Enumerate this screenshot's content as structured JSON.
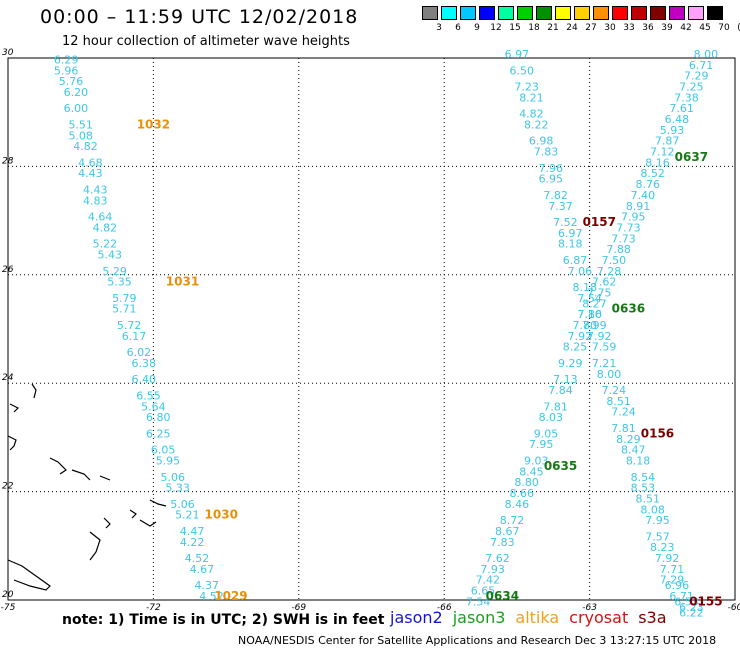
{
  "title": "00:00 – 11:59 UTC 12/02/2018",
  "subtitle": "12 hour collection of altimeter wave heights",
  "note": "note: 1) Time is in UTC; 2) SWH is in feet",
  "credit": "NOAA/NESDIS Center for Satellite Applications and Research    Dec  3 13:27:15 UTC 2018",
  "satellites": [
    {
      "name": "jason2",
      "color": "#1414d2"
    },
    {
      "name": "jason3",
      "color": "#1aa01a"
    },
    {
      "name": "altika",
      "color": "#f0a020"
    },
    {
      "name": "cryosat",
      "color": "#d01414"
    },
    {
      "name": "s3a",
      "color": "#7a0000"
    }
  ],
  "legend": {
    "unit": "(ft)",
    "levels": [
      "3",
      "6",
      "9",
      "12",
      "15",
      "18",
      "21",
      "24",
      "27",
      "30",
      "33",
      "36",
      "39",
      "42",
      "45",
      "70"
    ],
    "colors": [
      "#808080",
      "#00ffff",
      "#00c8ff",
      "#0000ff",
      "#00ffa0",
      "#00d000",
      "#009000",
      "#ffff00",
      "#ffd000",
      "#ff9000",
      "#ff0000",
      "#c00000",
      "#800000",
      "#c000c0",
      "#ffa0ff",
      "#000000"
    ]
  },
  "map": {
    "lon_ticks": [
      "-75",
      "-72",
      "-69",
      "-66",
      "-63",
      "-60"
    ],
    "lat_ticks": [
      "30",
      "28",
      "26",
      "24",
      "22",
      "20"
    ]
  },
  "tracks": [
    {
      "id": "altika-west",
      "time_labels": [
        {
          "time": "1032",
          "lat": 28.7,
          "lon": -72.0,
          "color": "#e8900a"
        },
        {
          "time": "1031",
          "lat": 25.8,
          "lon": -71.4,
          "color": "#e8900a"
        },
        {
          "time": "1030",
          "lat": 21.5,
          "lon": -70.6,
          "color": "#e8900a"
        },
        {
          "time": "1029",
          "lat": 20.0,
          "lon": -70.4,
          "color": "#e8900a"
        }
      ],
      "points": [
        {
          "lat": 29.9,
          "lon": -73.8,
          "v": "6.29"
        },
        {
          "lat": 29.7,
          "lon": -73.8,
          "v": "5.96"
        },
        {
          "lat": 29.5,
          "lon": -73.7,
          "v": "5.76"
        },
        {
          "lat": 29.3,
          "lon": -73.6,
          "v": "6.20"
        },
        {
          "lat": 29.0,
          "lon": -73.6,
          "v": "6.00"
        },
        {
          "lat": 28.7,
          "lon": -73.5,
          "v": "5.51"
        },
        {
          "lat": 28.5,
          "lon": -73.5,
          "v": "5.08"
        },
        {
          "lat": 28.3,
          "lon": -73.4,
          "v": "4.82"
        },
        {
          "lat": 28.0,
          "lon": -73.3,
          "v": "4.68"
        },
        {
          "lat": 27.8,
          "lon": -73.3,
          "v": "4.43"
        },
        {
          "lat": 27.5,
          "lon": -73.2,
          "v": "4.43"
        },
        {
          "lat": 27.3,
          "lon": -73.2,
          "v": "4.83"
        },
        {
          "lat": 27.0,
          "lon": -73.1,
          "v": "4.64"
        },
        {
          "lat": 26.8,
          "lon": -73.0,
          "v": "4.82"
        },
        {
          "lat": 26.5,
          "lon": -73.0,
          "v": "5.22"
        },
        {
          "lat": 26.3,
          "lon": -72.9,
          "v": "5.43"
        },
        {
          "lat": 26.0,
          "lon": -72.8,
          "v": "5.29"
        },
        {
          "lat": 25.8,
          "lon": -72.7,
          "v": "5.35"
        },
        {
          "lat": 25.5,
          "lon": -72.6,
          "v": "5.79"
        },
        {
          "lat": 25.3,
          "lon": -72.6,
          "v": "5.71"
        },
        {
          "lat": 25.0,
          "lon": -72.5,
          "v": "5.72"
        },
        {
          "lat": 24.8,
          "lon": -72.4,
          "v": "6.17"
        },
        {
          "lat": 24.5,
          "lon": -72.3,
          "v": "6.02"
        },
        {
          "lat": 24.3,
          "lon": -72.2,
          "v": "6.38"
        },
        {
          "lat": 24.0,
          "lon": -72.2,
          "v": "6.40"
        },
        {
          "lat": 23.7,
          "lon": -72.1,
          "v": "6.55"
        },
        {
          "lat": 23.5,
          "lon": -72.0,
          "v": "5.64"
        },
        {
          "lat": 23.3,
          "lon": -71.9,
          "v": "6.80"
        },
        {
          "lat": 23.0,
          "lon": -71.9,
          "v": "6.25"
        },
        {
          "lat": 22.7,
          "lon": -71.8,
          "v": "6.05"
        },
        {
          "lat": 22.5,
          "lon": -71.7,
          "v": "5.95"
        },
        {
          "lat": 22.2,
          "lon": -71.6,
          "v": "5.06"
        },
        {
          "lat": 22.0,
          "lon": -71.5,
          "v": "5.33"
        },
        {
          "lat": 21.7,
          "lon": -71.4,
          "v": "5.06"
        },
        {
          "lat": 21.5,
          "lon": -71.3,
          "v": "5.21"
        },
        {
          "lat": 21.2,
          "lon": -71.2,
          "v": "4.47"
        },
        {
          "lat": 21.0,
          "lon": -71.2,
          "v": "4.22"
        },
        {
          "lat": 20.7,
          "lon": -71.1,
          "v": "4.52"
        },
        {
          "lat": 20.5,
          "lon": -71.0,
          "v": "4.67"
        },
        {
          "lat": 20.2,
          "lon": -70.9,
          "v": "4.37"
        },
        {
          "lat": 20.0,
          "lon": -70.8,
          "v": "4.52"
        }
      ]
    },
    {
      "id": "ne-track",
      "time_labels": [
        {
          "time": "0637",
          "lat": 28.1,
          "lon": -60.9,
          "color": "#147814"
        },
        {
          "time": "0636",
          "lat": 25.3,
          "lon": -62.2,
          "color": "#147814"
        },
        {
          "time": "0635",
          "lat": 22.4,
          "lon": -63.6,
          "color": "#147814"
        },
        {
          "time": "0634",
          "lat": 20.0,
          "lon": -64.8,
          "color": "#147814"
        }
      ],
      "points": [
        {
          "lat": 30.0,
          "lon": -60.6,
          "v": "8.00"
        },
        {
          "lat": 29.8,
          "lon": -60.7,
          "v": "6.71"
        },
        {
          "lat": 29.6,
          "lon": -60.8,
          "v": "7.29"
        },
        {
          "lat": 29.4,
          "lon": -60.9,
          "v": "7.25"
        },
        {
          "lat": 29.2,
          "lon": -61.0,
          "v": "7.38"
        },
        {
          "lat": 29.0,
          "lon": -61.1,
          "v": "7.61"
        },
        {
          "lat": 28.8,
          "lon": -61.2,
          "v": "6.48"
        },
        {
          "lat": 28.6,
          "lon": -61.3,
          "v": "5.93"
        },
        {
          "lat": 28.4,
          "lon": -61.4,
          "v": "7.87"
        },
        {
          "lat": 28.2,
          "lon": -61.5,
          "v": "7.12"
        },
        {
          "lat": 28.0,
          "lon": -61.6,
          "v": "8.16"
        },
        {
          "lat": 27.8,
          "lon": -61.7,
          "v": "8.52"
        },
        {
          "lat": 27.6,
          "lon": -61.8,
          "v": "8.76"
        },
        {
          "lat": 27.4,
          "lon": -61.9,
          "v": "7.40"
        },
        {
          "lat": 27.2,
          "lon": -62.0,
          "v": "8.91"
        },
        {
          "lat": 27.0,
          "lon": -62.1,
          "v": "7.95"
        },
        {
          "lat": 26.8,
          "lon": -62.2,
          "v": "7.73"
        },
        {
          "lat": 26.6,
          "lon": -62.3,
          "v": "7.73"
        },
        {
          "lat": 26.4,
          "lon": -62.4,
          "v": "7.88"
        },
        {
          "lat": 26.2,
          "lon": -62.5,
          "v": "7.50"
        },
        {
          "lat": 26.0,
          "lon": -62.6,
          "v": "7.28"
        },
        {
          "lat": 25.8,
          "lon": -62.7,
          "v": "7.62"
        },
        {
          "lat": 25.6,
          "lon": -62.8,
          "v": "7.75"
        },
        {
          "lat": 25.4,
          "lon": -62.9,
          "v": "8.27"
        },
        {
          "lat": 25.2,
          "lon": -63.0,
          "v": "7.10"
        },
        {
          "lat": 25.0,
          "lon": -63.1,
          "v": "7.80"
        },
        {
          "lat": 24.8,
          "lon": -63.2,
          "v": "7.92"
        },
        {
          "lat": 24.6,
          "lon": -63.3,
          "v": "8.25"
        },
        {
          "lat": 24.3,
          "lon": -63.4,
          "v": "9.29"
        },
        {
          "lat": 24.0,
          "lon": -63.5,
          "v": "7.13"
        },
        {
          "lat": 23.8,
          "lon": -63.6,
          "v": "7.84"
        },
        {
          "lat": 23.5,
          "lon": -63.7,
          "v": "7.81"
        },
        {
          "lat": 23.3,
          "lon": -63.8,
          "v": "8.03"
        },
        {
          "lat": 23.0,
          "lon": -63.9,
          "v": "9.05"
        },
        {
          "lat": 22.8,
          "lon": -64.0,
          "v": "7.95"
        },
        {
          "lat": 22.5,
          "lon": -64.1,
          "v": "9.03"
        },
        {
          "lat": 22.3,
          "lon": -64.2,
          "v": "8.45"
        },
        {
          "lat": 22.1,
          "lon": -64.3,
          "v": "8.80"
        },
        {
          "lat": 21.9,
          "lon": -64.4,
          "v": "8.66"
        },
        {
          "lat": 21.7,
          "lon": -64.5,
          "v": "8.46"
        },
        {
          "lat": 21.4,
          "lon": -64.6,
          "v": "8.72"
        },
        {
          "lat": 21.2,
          "lon": -64.7,
          "v": "8.67"
        },
        {
          "lat": 21.0,
          "lon": -64.8,
          "v": "7.83"
        },
        {
          "lat": 20.7,
          "lon": -64.9,
          "v": "7.62"
        },
        {
          "lat": 20.5,
          "lon": -65.0,
          "v": "7.93"
        },
        {
          "lat": 20.3,
          "lon": -65.1,
          "v": "7.42"
        },
        {
          "lat": 20.1,
          "lon": -65.2,
          "v": "6.65"
        },
        {
          "lat": 19.9,
          "lon": -65.3,
          "v": "7.54"
        }
      ]
    },
    {
      "id": "nw-track",
      "time_labels": [
        {
          "time": "0157",
          "lat": 26.9,
          "lon": -62.8,
          "color": "#7a0000"
        },
        {
          "time": "0156",
          "lat": 23.0,
          "lon": -61.6,
          "color": "#7a0000"
        },
        {
          "time": "0155",
          "lat": 19.9,
          "lon": -60.6,
          "color": "#7a0000"
        }
      ],
      "points": [
        {
          "lat": 30.0,
          "lon": -64.5,
          "v": "6.97"
        },
        {
          "lat": 29.7,
          "lon": -64.4,
          "v": "6.50"
        },
        {
          "lat": 29.4,
          "lon": -64.3,
          "v": "7.23"
        },
        {
          "lat": 29.2,
          "lon": -64.2,
          "v": "8.21"
        },
        {
          "lat": 28.9,
          "lon": -64.2,
          "v": "4.82"
        },
        {
          "lat": 28.7,
          "lon": -64.1,
          "v": "8.22"
        },
        {
          "lat": 28.4,
          "lon": -64.0,
          "v": "6.98"
        },
        {
          "lat": 28.2,
          "lon": -63.9,
          "v": "7.83"
        },
        {
          "lat": 27.9,
          "lon": -63.8,
          "v": "7.96"
        },
        {
          "lat": 27.7,
          "lon": -63.8,
          "v": "6.95"
        },
        {
          "lat": 27.4,
          "lon": -63.7,
          "v": "7.82"
        },
        {
          "lat": 27.2,
          "lon": -63.6,
          "v": "7.37"
        },
        {
          "lat": 26.9,
          "lon": -63.5,
          "v": "7.52"
        },
        {
          "lat": 26.7,
          "lon": -63.4,
          "v": "6.97"
        },
        {
          "lat": 26.5,
          "lon": -63.4,
          "v": "8.18"
        },
        {
          "lat": 26.2,
          "lon": -63.3,
          "v": "6.87"
        },
        {
          "lat": 26.0,
          "lon": -63.2,
          "v": "7.06"
        },
        {
          "lat": 25.7,
          "lon": -63.1,
          "v": "8.18"
        },
        {
          "lat": 25.5,
          "lon": -63.0,
          "v": "7.54"
        },
        {
          "lat": 25.2,
          "lon": -63.0,
          "v": "7.86"
        },
        {
          "lat": 25.0,
          "lon": -62.9,
          "v": "7.99"
        },
        {
          "lat": 24.8,
          "lon": -62.8,
          "v": "7.92"
        },
        {
          "lat": 24.6,
          "lon": -62.7,
          "v": "7.59"
        },
        {
          "lat": 24.3,
          "lon": -62.7,
          "v": "7.21"
        },
        {
          "lat": 24.1,
          "lon": -62.6,
          "v": "8.00"
        },
        {
          "lat": 23.8,
          "lon": -62.5,
          "v": "7.24"
        },
        {
          "lat": 23.6,
          "lon": -62.4,
          "v": "8.51"
        },
        {
          "lat": 23.4,
          "lon": -62.3,
          "v": "7.24"
        },
        {
          "lat": 23.1,
          "lon": -62.3,
          "v": "7.81"
        },
        {
          "lat": 22.9,
          "lon": -62.2,
          "v": "8.29"
        },
        {
          "lat": 22.7,
          "lon": -62.1,
          "v": "8.47"
        },
        {
          "lat": 22.5,
          "lon": -62.0,
          "v": "8.18"
        },
        {
          "lat": 22.2,
          "lon": -61.9,
          "v": "8.54"
        },
        {
          "lat": 22.0,
          "lon": -61.9,
          "v": "8.53"
        },
        {
          "lat": 21.8,
          "lon": -61.8,
          "v": "8.51"
        },
        {
          "lat": 21.6,
          "lon": -61.7,
          "v": "8.08"
        },
        {
          "lat": 21.4,
          "lon": -61.6,
          "v": "7.95"
        },
        {
          "lat": 21.1,
          "lon": -61.6,
          "v": "7.57"
        },
        {
          "lat": 20.9,
          "lon": -61.5,
          "v": "8.23"
        },
        {
          "lat": 20.7,
          "lon": -61.4,
          "v": "7.92"
        },
        {
          "lat": 20.5,
          "lon": -61.3,
          "v": "7.71"
        },
        {
          "lat": 20.3,
          "lon": -61.3,
          "v": "7.29"
        },
        {
          "lat": 20.2,
          "lon": -61.2,
          "v": "6.96"
        },
        {
          "lat": 20.0,
          "lon": -61.1,
          "v": "6.71"
        },
        {
          "lat": 19.9,
          "lon": -61.0,
          "v": "6.53"
        },
        {
          "lat": 19.8,
          "lon": -60.9,
          "v": "6.23"
        },
        {
          "lat": 19.7,
          "lon": -60.9,
          "v": "6.22"
        }
      ]
    }
  ]
}
